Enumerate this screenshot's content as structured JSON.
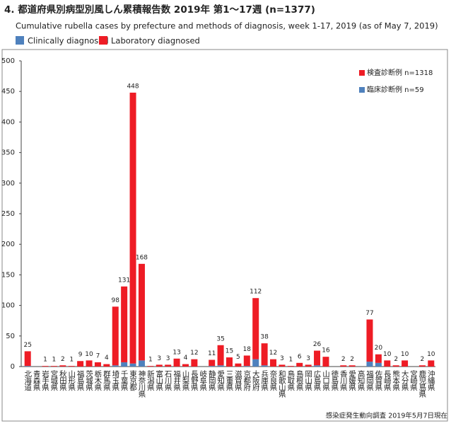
{
  "chart_data": {
    "type": "stacked-bar",
    "title": "4. 都道府県別病型別風しん累積報告数  2019年 第1～17週 (n=1377)",
    "subtitle": "Cumulative rubella cases by prefecture and methods of diagnosis, week 1-17, 2019 (as of May 7, 2019)",
    "source": "感染症発生動向調査  2019年5月7日現在",
    "categories": [
      "北海道",
      "青森県",
      "岩手県",
      "宮城県",
      "秋田県",
      "山形県",
      "福島県",
      "茨城県",
      "栃木県",
      "群馬県",
      "埼玉県",
      "千葉県",
      "東京都",
      "神奈川県",
      "新潟県",
      "富山県",
      "石川県",
      "福井県",
      "山梨県",
      "長野県",
      "岐阜県",
      "静岡県",
      "愛知県",
      "三重県",
      "滋賀県",
      "京都府",
      "大阪府",
      "兵庫県",
      "奈良県",
      "和歌山県",
      "鳥取県",
      "島根県",
      "岡山県",
      "広島県",
      "山口県",
      "徳島県",
      "香川県",
      "愛媛県",
      "高知県",
      "福岡県",
      "佐賀県",
      "長崎県",
      "熊本県",
      "大分県",
      "宮崎県",
      "鹿児島県",
      "沖縄県"
    ],
    "series": [
      {
        "name": "Clinically diagnosed",
        "legend_label": "臨床診断例 n=59",
        "color": "#4f81bd",
        "values": [
          1,
          0,
          0,
          0,
          0,
          0,
          0,
          0,
          0,
          0,
          2,
          7,
          5,
          10,
          0,
          0,
          0,
          0,
          0,
          0,
          0,
          1,
          2,
          0,
          0,
          1,
          12,
          2,
          0,
          0,
          0,
          0,
          0,
          2,
          0,
          0,
          0,
          0,
          0,
          8,
          6,
          0,
          0,
          0,
          0,
          0,
          0
        ]
      },
      {
        "name": "Laboratory diagnosed",
        "legend_label": "検査診断例 n=1318",
        "color": "#ee1c25",
        "values": [
          24,
          0,
          1,
          1,
          2,
          1,
          9,
          10,
          7,
          4,
          96,
          124,
          443,
          158,
          1,
          3,
          3,
          13,
          4,
          12,
          0,
          10,
          33,
          15,
          5,
          17,
          100,
          36,
          12,
          3,
          1,
          6,
          3,
          24,
          16,
          0,
          2,
          2,
          0,
          69,
          14,
          10,
          2,
          10,
          0,
          2,
          10
        ]
      }
    ],
    "totals": [
      25,
      null,
      1,
      1,
      2,
      1,
      9,
      10,
      7,
      4,
      98,
      131,
      448,
      168,
      1,
      3,
      3,
      13,
      4,
      12,
      null,
      11,
      35,
      15,
      5,
      18,
      112,
      38,
      12,
      3,
      1,
      6,
      3,
      26,
      16,
      null,
      2,
      2,
      null,
      77,
      20,
      10,
      2,
      10,
      null,
      2,
      10
    ],
    "ylim": [
      0,
      500
    ],
    "yticks": [
      0,
      50,
      100,
      150,
      200,
      250,
      300,
      350,
      400,
      450,
      500
    ],
    "grid": false
  }
}
